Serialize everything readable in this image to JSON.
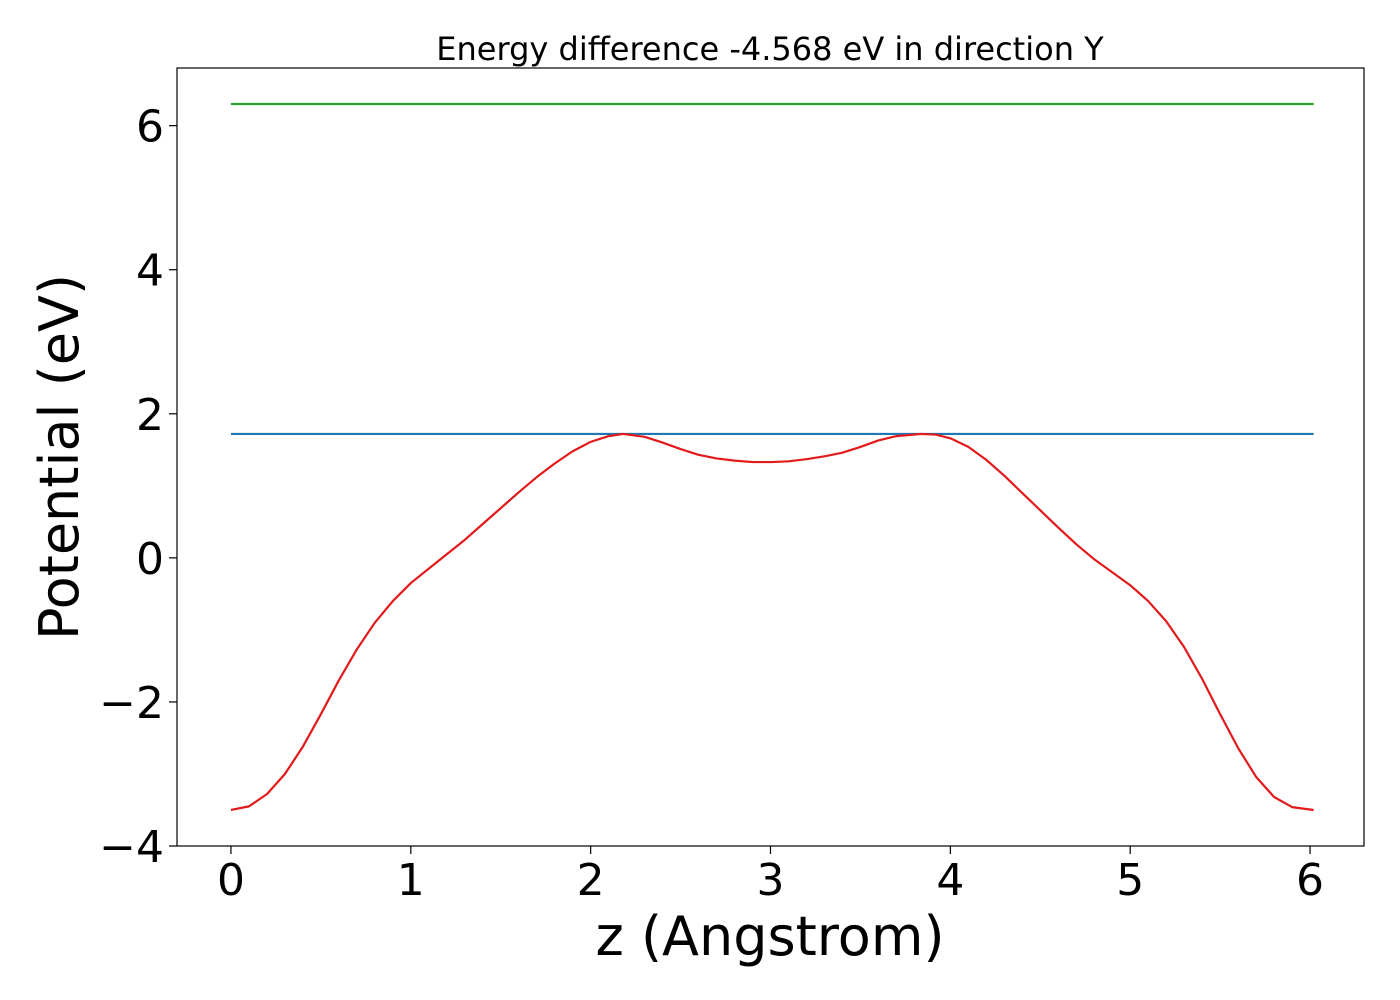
{
  "chart_data": {
    "type": "line",
    "title": "Energy difference -4.568 eV in direction Y",
    "xlabel": "z (Angstrom)",
    "ylabel": "Potential (eV)",
    "xlim": [
      -0.3,
      6.3
    ],
    "ylim": [
      -4,
      6.8
    ],
    "xticks": [
      0,
      1,
      2,
      3,
      4,
      5,
      6
    ],
    "xtick_labels": [
      "0",
      "1",
      "2",
      "3",
      "4",
      "5",
      "6"
    ],
    "yticks": [
      -4,
      -2,
      0,
      2,
      4,
      6
    ],
    "ytick_labels": [
      "−4",
      "−2",
      "0",
      "2",
      "4",
      "6"
    ],
    "grid": false,
    "legend": "none",
    "series": [
      {
        "color": "#2ca02c",
        "x": [
          0,
          6.02
        ],
        "y": [
          6.3,
          6.3
        ]
      },
      {
        "color": "#1f77b4",
        "x": [
          0,
          6.02
        ],
        "y": [
          1.72,
          1.72
        ]
      },
      {
        "color": "#e31a1c",
        "x": [
          0,
          0.1,
          0.2,
          0.3,
          0.4,
          0.5,
          0.6,
          0.7,
          0.8,
          0.9,
          1.0,
          1.1,
          1.2,
          1.3,
          1.4,
          1.5,
          1.6,
          1.7,
          1.8,
          1.9,
          2.0,
          2.1,
          2.18,
          2.3,
          2.4,
          2.5,
          2.6,
          2.7,
          2.8,
          2.9,
          3.01,
          3.1,
          3.2,
          3.3,
          3.4,
          3.5,
          3.6,
          3.7,
          3.84,
          3.92,
          4.0,
          4.1,
          4.2,
          4.3,
          4.4,
          4.5,
          4.6,
          4.7,
          4.8,
          4.9,
          5.0,
          5.1,
          5.2,
          5.3,
          5.4,
          5.5,
          5.6,
          5.7,
          5.8,
          5.9,
          6.02
        ],
        "y": [
          -3.5,
          -3.45,
          -3.28,
          -3.0,
          -2.62,
          -2.17,
          -1.7,
          -1.27,
          -0.9,
          -0.6,
          -0.35,
          -0.15,
          0.05,
          0.25,
          0.47,
          0.69,
          0.91,
          1.12,
          1.31,
          1.48,
          1.61,
          1.69,
          1.72,
          1.68,
          1.6,
          1.51,
          1.43,
          1.38,
          1.35,
          1.33,
          1.33,
          1.34,
          1.37,
          1.41,
          1.46,
          1.54,
          1.63,
          1.69,
          1.72,
          1.71,
          1.66,
          1.54,
          1.36,
          1.14,
          0.9,
          0.66,
          0.42,
          0.19,
          -0.02,
          -0.2,
          -0.38,
          -0.6,
          -0.88,
          -1.24,
          -1.68,
          -2.17,
          -2.64,
          -3.04,
          -3.32,
          -3.46,
          -3.5
        ]
      }
    ]
  }
}
